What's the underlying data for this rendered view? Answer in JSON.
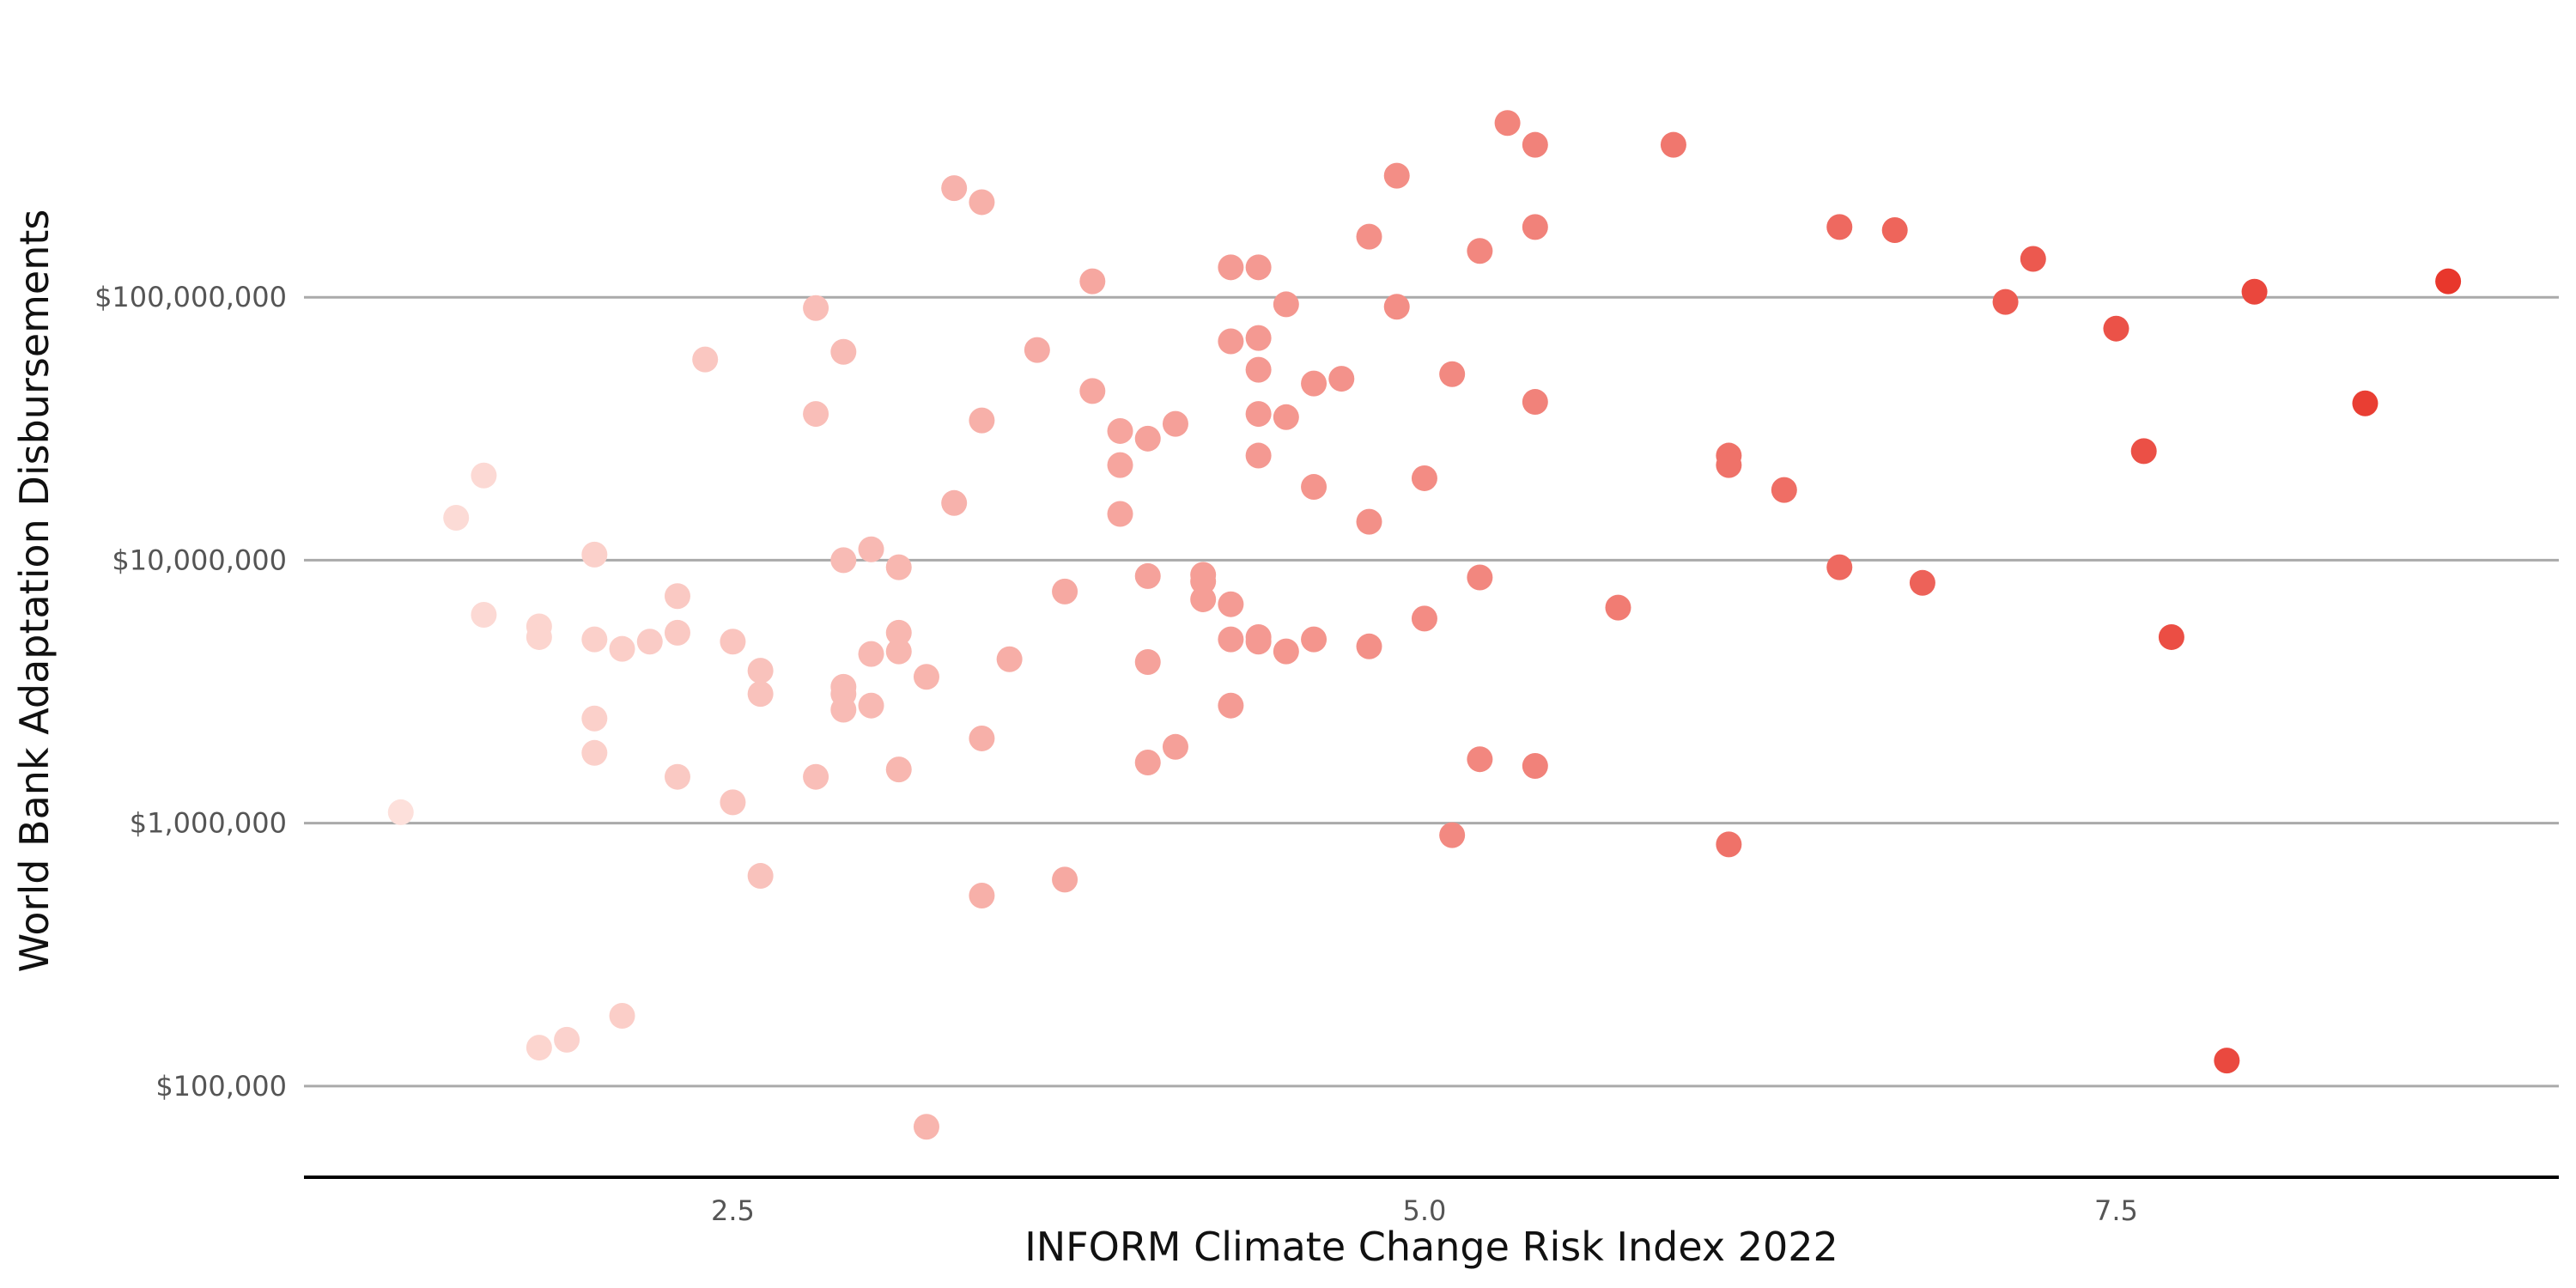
{
  "chart_data": {
    "type": "scatter",
    "xlabel": "INFORM Climate Change Risk Index 2022",
    "ylabel": "World Bank Adaptation Disbursements",
    "xlim": [
      0.95,
      9.1
    ],
    "ylim": [
      45000,
      1000000000
    ],
    "yscale": "log",
    "grid": "horizontal",
    "xticks": [
      {
        "value": 2.5,
        "label": "2.5"
      },
      {
        "value": 5.0,
        "label": "5.0"
      },
      {
        "value": 7.5,
        "label": "7.5"
      }
    ],
    "yticks": [
      {
        "value": 100000,
        "label": "$100,000"
      },
      {
        "value": 1000000,
        "label": "$1,000,000"
      },
      {
        "value": 10000000,
        "label": "$10,000,000"
      },
      {
        "value": 100000000,
        "label": "$100,000,000"
      }
    ],
    "color_low": "#fde0db",
    "color_high": "#e8372c",
    "points": [
      [
        1.3,
        1100000.0
      ],
      [
        1.5,
        14500000.0
      ],
      [
        1.6,
        21000000.0
      ],
      [
        1.6,
        6200000.0
      ],
      [
        1.8,
        5600000.0
      ],
      [
        1.8,
        5100000.0
      ],
      [
        1.8,
        140000.0
      ],
      [
        1.9,
        150000.0
      ],
      [
        2.0,
        10500000.0
      ],
      [
        2.0,
        5000000.0
      ],
      [
        2.0,
        2500000.0
      ],
      [
        2.0,
        1850000.0
      ],
      [
        2.1,
        4600000.0
      ],
      [
        2.1,
        185000.0
      ],
      [
        2.2,
        4900000.0
      ],
      [
        2.3,
        7300000.0
      ],
      [
        2.3,
        5300000.0
      ],
      [
        2.3,
        1500000.0
      ],
      [
        2.4,
        58000000.0
      ],
      [
        2.5,
        4900000.0
      ],
      [
        2.5,
        1200000.0
      ],
      [
        2.6,
        3800000.0
      ],
      [
        2.6,
        3100000.0
      ],
      [
        2.6,
        630000.0
      ],
      [
        2.8,
        91000000.0
      ],
      [
        2.8,
        36000000.0
      ],
      [
        2.8,
        1500000.0
      ],
      [
        2.9,
        62000000.0
      ],
      [
        2.9,
        10000000.0
      ],
      [
        2.9,
        3300000.0
      ],
      [
        2.9,
        3100000.0
      ],
      [
        2.9,
        2700000.0
      ],
      [
        3.0,
        11000000.0
      ],
      [
        3.0,
        4400000.0
      ],
      [
        3.0,
        2800000.0
      ],
      [
        3.1,
        9400000.0
      ],
      [
        3.1,
        5300000.0
      ],
      [
        3.1,
        4500000.0
      ],
      [
        3.1,
        1600000.0
      ],
      [
        3.2,
        3600000.0
      ],
      [
        3.2,
        70000.0
      ],
      [
        3.3,
        260000000.0
      ],
      [
        3.3,
        16500000.0
      ],
      [
        3.4,
        230000000.0
      ],
      [
        3.4,
        34000000.0
      ],
      [
        3.4,
        2100000.0
      ],
      [
        3.4,
        530000.0
      ],
      [
        3.5,
        4200000.0
      ],
      [
        3.6,
        63000000.0
      ],
      [
        3.7,
        7600000.0
      ],
      [
        3.7,
        610000.0
      ],
      [
        3.8,
        115000000.0
      ],
      [
        3.8,
        44000000.0
      ],
      [
        3.9,
        31000000.0
      ],
      [
        3.9,
        23000000.0
      ],
      [
        3.9,
        15000000.0
      ],
      [
        4.0,
        29000000.0
      ],
      [
        4.0,
        8700000.0
      ],
      [
        4.0,
        4100000.0
      ],
      [
        4.0,
        1700000.0
      ],
      [
        4.1,
        33000000.0
      ],
      [
        4.1,
        1950000.0
      ],
      [
        4.2,
        8800000.0
      ],
      [
        4.2,
        8300000.0
      ],
      [
        4.2,
        7100000.0
      ],
      [
        4.3,
        130000000.0
      ],
      [
        4.3,
        68000000.0
      ],
      [
        4.3,
        6800000.0
      ],
      [
        4.3,
        5000000.0
      ],
      [
        4.3,
        2800000.0
      ],
      [
        4.4,
        130000000.0
      ],
      [
        4.4,
        70000000.0
      ],
      [
        4.4,
        53000000.0
      ],
      [
        4.4,
        36000000.0
      ],
      [
        4.4,
        25000000.0
      ],
      [
        4.4,
        5100000.0
      ],
      [
        4.4,
        4900000.0
      ],
      [
        4.5,
        94000000.0
      ],
      [
        4.5,
        35000000.0
      ],
      [
        4.5,
        4500000.0
      ],
      [
        4.6,
        47000000.0
      ],
      [
        4.6,
        19000000.0
      ],
      [
        4.6,
        5000000.0
      ],
      [
        4.7,
        49000000.0
      ],
      [
        4.8,
        170000000.0
      ],
      [
        4.8,
        14000000.0
      ],
      [
        4.8,
        4700000.0
      ],
      [
        4.9,
        290000000.0
      ],
      [
        4.9,
        92000000.0
      ],
      [
        5.0,
        20500000.0
      ],
      [
        5.0,
        6000000.0
      ],
      [
        5.1,
        51000000.0
      ],
      [
        5.1,
        900000.0
      ],
      [
        5.2,
        150000000.0
      ],
      [
        5.2,
        8600000.0
      ],
      [
        5.2,
        1750000.0
      ],
      [
        5.3,
        460000000.0
      ],
      [
        5.4,
        380000000.0
      ],
      [
        5.4,
        185000000.0
      ],
      [
        5.4,
        40000000.0
      ],
      [
        5.4,
        1650000.0
      ],
      [
        5.7,
        6600000.0
      ],
      [
        5.9,
        380000000.0
      ],
      [
        6.1,
        25000000.0
      ],
      [
        6.1,
        23000000.0
      ],
      [
        6.1,
        830000.0
      ],
      [
        6.3,
        18500000.0
      ],
      [
        6.5,
        185000000.0
      ],
      [
        6.5,
        9400000.0
      ],
      [
        6.7,
        180000000.0
      ],
      [
        6.8,
        8200000.0
      ],
      [
        7.1,
        96000000.0
      ],
      [
        7.2,
        140000000.0
      ],
      [
        7.5,
        76000000.0
      ],
      [
        7.6,
        26000000.0
      ],
      [
        7.7,
        5100000.0
      ],
      [
        7.9,
        125000.0
      ],
      [
        8.0,
        105000000.0
      ],
      [
        8.4,
        39500000.0
      ],
      [
        8.7,
        115000000.0
      ]
    ]
  }
}
